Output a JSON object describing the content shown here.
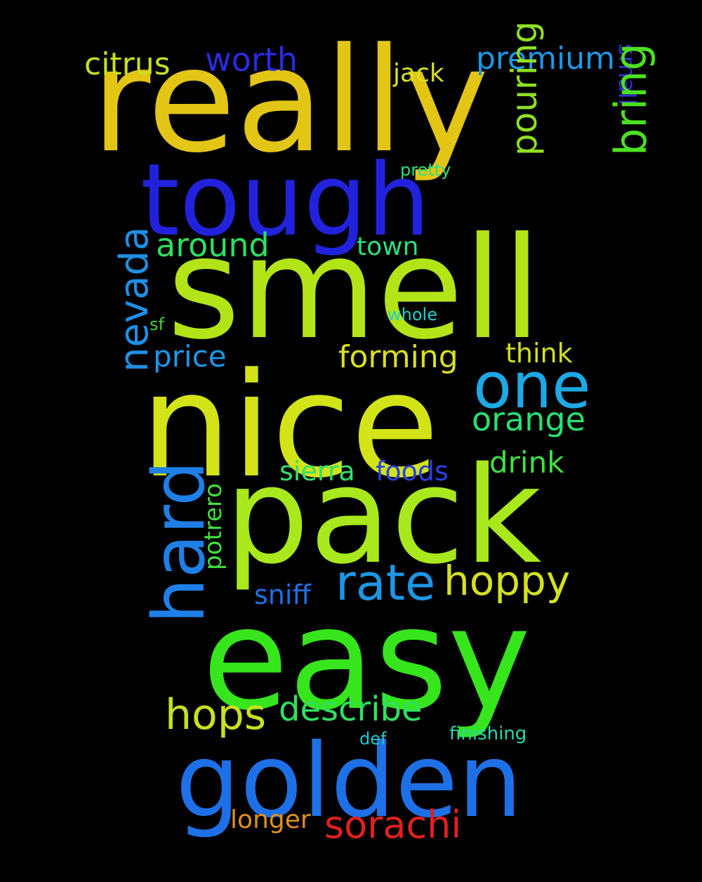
{
  "words": {
    "really": {
      "text": "really",
      "color": "#E3C516"
    },
    "tough": {
      "text": "tough",
      "color": "#2222DD"
    },
    "smell": {
      "text": "smell",
      "color": "#B2E418"
    },
    "nice": {
      "text": "nice",
      "color": "#D2E418"
    },
    "pack": {
      "text": "pack",
      "color": "#A8E81C"
    },
    "easy": {
      "text": "easy",
      "color": "#36E51C"
    },
    "golden": {
      "text": "golden",
      "color": "#1E70E6"
    },
    "citrus": {
      "text": "citrus",
      "color": "#C8E020"
    },
    "worth": {
      "text": "worth",
      "color": "#2A2AE0"
    },
    "jack": {
      "text": "jack",
      "color": "#D8E020"
    },
    "premium": {
      "text": "premium",
      "color": "#1E96E6"
    },
    "small": {
      "text": "small",
      "color": "#3030D0"
    },
    "pretty": {
      "text": "pretty",
      "color": "#2CE080"
    },
    "pouring": {
      "text": "pouring",
      "color": "#90E020"
    },
    "bring": {
      "text": "bring",
      "color": "#4CE020"
    },
    "nevada": {
      "text": "nevada",
      "color": "#1E90E6"
    },
    "around": {
      "text": "around",
      "color": "#2CE060"
    },
    "town": {
      "text": "town",
      "color": "#28E080"
    },
    "whole": {
      "text": "whole",
      "color": "#24D0C8"
    },
    "sf": {
      "text": "sf",
      "color": "#40D040"
    },
    "price": {
      "text": "price",
      "color": "#1E96E6"
    },
    "forming": {
      "text": "forming",
      "color": "#D8E020"
    },
    "think": {
      "text": "think",
      "color": "#D0E020"
    },
    "one": {
      "text": "one",
      "color": "#1EA8E6"
    },
    "orange": {
      "text": "orange",
      "color": "#28E070"
    },
    "hard": {
      "text": "hard",
      "color": "#1E80E6"
    },
    "drink": {
      "text": "drink",
      "color": "#40E040"
    },
    "sierra": {
      "text": "sierra",
      "color": "#30E070"
    },
    "foods": {
      "text": "foods",
      "color": "#2A40E0"
    },
    "potrero": {
      "text": "potrero",
      "color": "#40E040"
    },
    "rate": {
      "text": "rate",
      "color": "#1E96E6"
    },
    "hoppy": {
      "text": "hoppy",
      "color": "#D4E020"
    },
    "sniff": {
      "text": "sniff",
      "color": "#1E70E6"
    },
    "hops": {
      "text": "hops",
      "color": "#C8E020"
    },
    "describe": {
      "text": "describe",
      "color": "#30E060"
    },
    "def": {
      "text": "def",
      "color": "#24C8D0"
    },
    "finishing": {
      "text": "finishing",
      "color": "#28D8B0"
    },
    "longer": {
      "text": "longer",
      "color": "#E09020"
    },
    "sorachi": {
      "text": "sorachi",
      "color": "#E02020"
    }
  }
}
